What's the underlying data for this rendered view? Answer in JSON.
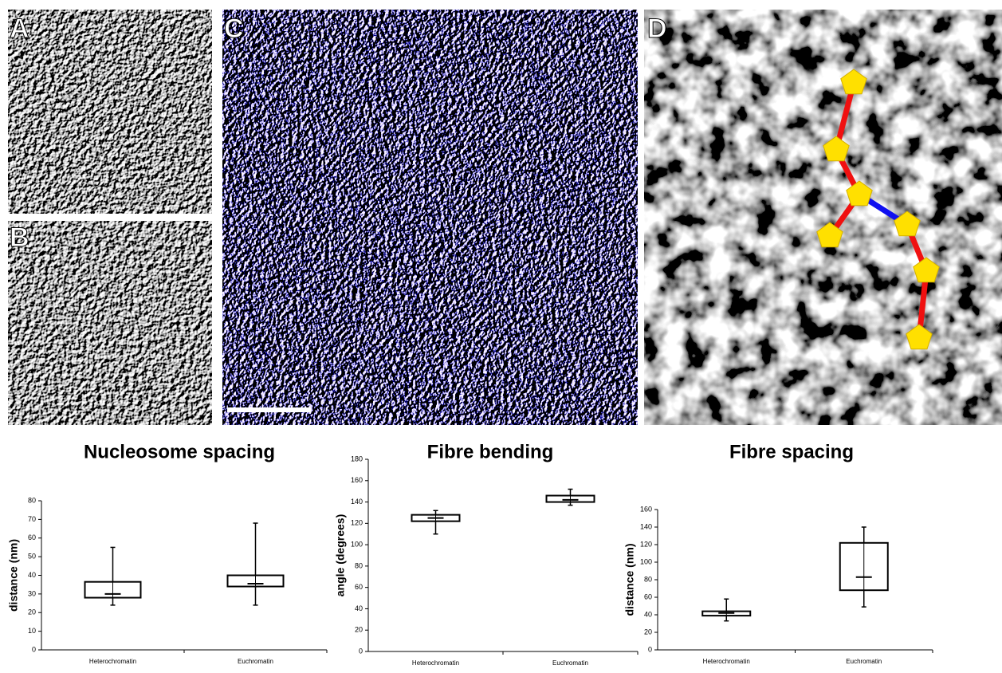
{
  "panels": {
    "labels": [
      "A",
      "B",
      "C",
      "D"
    ]
  },
  "chart_data": [
    {
      "type": "box",
      "title": "Nucleosome spacing",
      "y_label": "distance (nm)",
      "categories": [
        "Heterochromatin",
        "Euchromatin"
      ],
      "boxes": [
        {
          "min": 24,
          "q1": 28,
          "median": 30,
          "q3": 36.5,
          "max": 55
        },
        {
          "min": 24,
          "q1": 34,
          "median": 35.5,
          "q3": 40,
          "max": 68
        }
      ],
      "ylim": [
        0,
        80
      ],
      "yticks": [
        0,
        10,
        20,
        30,
        40,
        50,
        60,
        70,
        80
      ],
      "color": "#000000"
    },
    {
      "type": "box",
      "title": "Fibre bending",
      "y_label": "angle (degrees)",
      "categories": [
        "Heterochromatin",
        "Euchromatin"
      ],
      "boxes": [
        {
          "min": 110,
          "q1": 122,
          "median": 125,
          "q3": 128,
          "max": 132
        },
        {
          "min": 137,
          "q1": 140,
          "median": 142,
          "q3": 146,
          "max": 152
        }
      ],
      "ylim": [
        0,
        180
      ],
      "yticks": [
        0,
        20,
        40,
        60,
        80,
        100,
        120,
        140,
        160,
        180
      ],
      "color": "#000000"
    },
    {
      "type": "box",
      "title": "Fibre spacing",
      "y_label": "distance (nm)",
      "categories": [
        "Heterochromatin",
        "Euchromatin"
      ],
      "boxes": [
        {
          "min": 33,
          "q1": 39,
          "median": 42,
          "q3": 44,
          "max": 58
        },
        {
          "min": 49,
          "q1": 68,
          "median": 83,
          "q3": 122,
          "max": 140
        }
      ],
      "ylim": [
        0,
        160
      ],
      "yticks": [
        0,
        20,
        40,
        60,
        80,
        100,
        120,
        140,
        160
      ],
      "color": "#000000"
    }
  ]
}
